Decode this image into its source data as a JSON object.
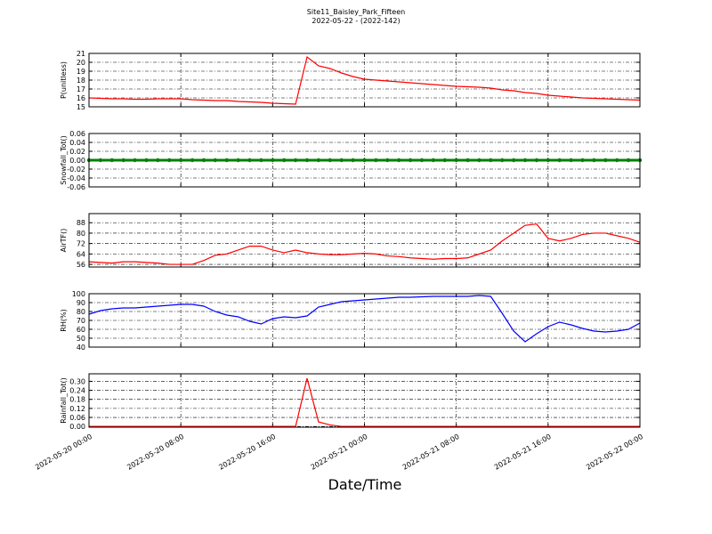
{
  "chart_data": [
    {
      "type": "line",
      "title": "Site11_Baisley_Park_Fifteen",
      "subtitle": "2022-05-22 - (2022-142)",
      "y_label": "P(unitless)",
      "xlim": [
        "2022-05-20 00:00",
        "2022-05-22 00:00"
      ],
      "ylim": [
        15,
        21
      ],
      "yticks": [
        15,
        16,
        17,
        18,
        19,
        20,
        21
      ],
      "grid": true,
      "x": [
        "2022-05-20 00:00",
        "2022-05-20 01:00",
        "2022-05-20 02:00",
        "2022-05-20 03:00",
        "2022-05-20 04:00",
        "2022-05-20 05:00",
        "2022-05-20 06:00",
        "2022-05-20 07:00",
        "2022-05-20 08:00",
        "2022-05-20 09:00",
        "2022-05-20 10:00",
        "2022-05-20 11:00",
        "2022-05-20 12:00",
        "2022-05-20 13:00",
        "2022-05-20 14:00",
        "2022-05-20 15:00",
        "2022-05-20 16:00",
        "2022-05-20 17:00",
        "2022-05-20 18:00",
        "2022-05-20 19:00",
        "2022-05-20 20:00",
        "2022-05-20 21:00",
        "2022-05-20 22:00",
        "2022-05-20 23:00",
        "2022-05-21 00:00",
        "2022-05-21 01:00",
        "2022-05-21 02:00",
        "2022-05-21 03:00",
        "2022-05-21 04:00",
        "2022-05-21 05:00",
        "2022-05-21 06:00",
        "2022-05-21 07:00",
        "2022-05-21 08:00",
        "2022-05-21 09:00",
        "2022-05-21 10:00",
        "2022-05-21 11:00",
        "2022-05-21 12:00",
        "2022-05-21 13:00",
        "2022-05-21 14:00",
        "2022-05-21 15:00",
        "2022-05-21 16:00",
        "2022-05-21 17:00",
        "2022-05-21 18:00",
        "2022-05-21 19:00",
        "2022-05-21 20:00",
        "2022-05-21 21:00",
        "2022-05-21 22:00",
        "2022-05-21 23:00",
        "2022-05-22 00:00"
      ],
      "series": [
        {
          "name": "P",
          "color": "#ff0000",
          "values": [
            16.0,
            15.95,
            15.9,
            15.9,
            15.85,
            15.85,
            15.9,
            15.9,
            15.9,
            15.8,
            15.75,
            15.7,
            15.7,
            15.6,
            15.55,
            15.5,
            15.4,
            15.35,
            15.3,
            20.6,
            19.6,
            19.3,
            18.8,
            18.4,
            18.1,
            18.0,
            17.9,
            17.8,
            17.7,
            17.6,
            17.5,
            17.4,
            17.3,
            17.25,
            17.2,
            17.1,
            16.9,
            16.8,
            16.6,
            16.5,
            16.3,
            16.2,
            16.1,
            16.0,
            15.95,
            15.9,
            15.85,
            15.8,
            15.75
          ]
        }
      ]
    },
    {
      "type": "line",
      "y_label": "Snowfall_Tot()",
      "markers": true,
      "xlim": [
        "2022-05-20 00:00",
        "2022-05-22 00:00"
      ],
      "ylim": [
        -0.06,
        0.06
      ],
      "yticks": [
        -0.06,
        -0.04,
        -0.02,
        {
          "value": 0,
          "label": "0.00"
        },
        0.02,
        0.04,
        0.06
      ],
      "grid": true,
      "x": [
        "2022-05-20 00:00",
        "2022-05-20 01:00",
        "2022-05-20 02:00",
        "2022-05-20 03:00",
        "2022-05-20 04:00",
        "2022-05-20 05:00",
        "2022-05-20 06:00",
        "2022-05-20 07:00",
        "2022-05-20 08:00",
        "2022-05-20 09:00",
        "2022-05-20 10:00",
        "2022-05-20 11:00",
        "2022-05-20 12:00",
        "2022-05-20 13:00",
        "2022-05-20 14:00",
        "2022-05-20 15:00",
        "2022-05-20 16:00",
        "2022-05-20 17:00",
        "2022-05-20 18:00",
        "2022-05-20 19:00",
        "2022-05-20 20:00",
        "2022-05-20 21:00",
        "2022-05-20 22:00",
        "2022-05-20 23:00",
        "2022-05-21 00:00",
        "2022-05-21 01:00",
        "2022-05-21 02:00",
        "2022-05-21 03:00",
        "2022-05-21 04:00",
        "2022-05-21 05:00",
        "2022-05-21 06:00",
        "2022-05-21 07:00",
        "2022-05-21 08:00",
        "2022-05-21 09:00",
        "2022-05-21 10:00",
        "2022-05-21 11:00",
        "2022-05-21 12:00",
        "2022-05-21 13:00",
        "2022-05-21 14:00",
        "2022-05-21 15:00",
        "2022-05-21 16:00",
        "2022-05-21 17:00",
        "2022-05-21 18:00",
        "2022-05-21 19:00",
        "2022-05-21 20:00",
        "2022-05-21 21:00",
        "2022-05-21 22:00",
        "2022-05-21 23:00",
        "2022-05-22 00:00"
      ],
      "series": [
        {
          "name": "Snowfall_Tot",
          "color": "#008000",
          "values": [
            0,
            0,
            0,
            0,
            0,
            0,
            0,
            0,
            0,
            0,
            0,
            0,
            0,
            0,
            0,
            0,
            0,
            0,
            0,
            0,
            0,
            0,
            0,
            0,
            0,
            0,
            0,
            0,
            0,
            0,
            0,
            0,
            0,
            0,
            0,
            0,
            0,
            0,
            0,
            0,
            0,
            0,
            0,
            0,
            0,
            0,
            0,
            0,
            0
          ]
        }
      ]
    },
    {
      "type": "line",
      "y_label": "AirTF()",
      "xlim": [
        "2022-05-20 00:00",
        "2022-05-22 00:00"
      ],
      "ylim": [
        54,
        95
      ],
      "yticks": [
        56,
        64,
        72,
        80,
        88
      ],
      "grid": true,
      "x": [
        "2022-05-20 00:00",
        "2022-05-20 01:00",
        "2022-05-20 02:00",
        "2022-05-20 03:00",
        "2022-05-20 04:00",
        "2022-05-20 05:00",
        "2022-05-20 06:00",
        "2022-05-20 07:00",
        "2022-05-20 08:00",
        "2022-05-20 09:00",
        "2022-05-20 10:00",
        "2022-05-20 11:00",
        "2022-05-20 12:00",
        "2022-05-20 13:00",
        "2022-05-20 14:00",
        "2022-05-20 15:00",
        "2022-05-20 16:00",
        "2022-05-20 17:00",
        "2022-05-20 18:00",
        "2022-05-20 19:00",
        "2022-05-20 20:00",
        "2022-05-20 21:00",
        "2022-05-20 22:00",
        "2022-05-20 23:00",
        "2022-05-21 00:00",
        "2022-05-21 01:00",
        "2022-05-21 02:00",
        "2022-05-21 03:00",
        "2022-05-21 04:00",
        "2022-05-21 05:00",
        "2022-05-21 06:00",
        "2022-05-21 07:00",
        "2022-05-21 08:00",
        "2022-05-21 09:00",
        "2022-05-21 10:00",
        "2022-05-21 11:00",
        "2022-05-21 12:00",
        "2022-05-21 13:00",
        "2022-05-21 14:00",
        "2022-05-21 15:00",
        "2022-05-21 16:00",
        "2022-05-21 17:00",
        "2022-05-21 18:00",
        "2022-05-21 19:00",
        "2022-05-21 20:00",
        "2022-05-21 21:00",
        "2022-05-21 22:00",
        "2022-05-21 23:00",
        "2022-05-22 00:00"
      ],
      "series": [
        {
          "name": "AirTF",
          "color": "#ff0000",
          "values": [
            58,
            57.5,
            57,
            58,
            58,
            57.5,
            57,
            56,
            56,
            56,
            59,
            63,
            64,
            67,
            70,
            70,
            67,
            65,
            67,
            65,
            64,
            63.5,
            63.5,
            64,
            64.5,
            64,
            62.5,
            62,
            61,
            60.5,
            60,
            60.5,
            60.5,
            61,
            64,
            67,
            74,
            80,
            86,
            87,
            76,
            74,
            76,
            79,
            80,
            80,
            78,
            76,
            73
          ]
        }
      ]
    },
    {
      "type": "line",
      "y_label": "RH(%)",
      "xlim": [
        "2022-05-20 00:00",
        "2022-05-22 00:00"
      ],
      "ylim": [
        40,
        100
      ],
      "yticks": [
        40,
        50,
        60,
        70,
        80,
        90,
        100
      ],
      "grid": true,
      "x": [
        "2022-05-20 00:00",
        "2022-05-20 01:00",
        "2022-05-20 02:00",
        "2022-05-20 03:00",
        "2022-05-20 04:00",
        "2022-05-20 05:00",
        "2022-05-20 06:00",
        "2022-05-20 07:00",
        "2022-05-20 08:00",
        "2022-05-20 09:00",
        "2022-05-20 10:00",
        "2022-05-20 11:00",
        "2022-05-20 12:00",
        "2022-05-20 13:00",
        "2022-05-20 14:00",
        "2022-05-20 15:00",
        "2022-05-20 16:00",
        "2022-05-20 17:00",
        "2022-05-20 18:00",
        "2022-05-20 19:00",
        "2022-05-20 20:00",
        "2022-05-20 21:00",
        "2022-05-20 22:00",
        "2022-05-20 23:00",
        "2022-05-21 00:00",
        "2022-05-21 01:00",
        "2022-05-21 02:00",
        "2022-05-21 03:00",
        "2022-05-21 04:00",
        "2022-05-21 05:00",
        "2022-05-21 06:00",
        "2022-05-21 07:00",
        "2022-05-21 08:00",
        "2022-05-21 09:00",
        "2022-05-21 10:00",
        "2022-05-21 11:00",
        "2022-05-21 12:00",
        "2022-05-21 13:00",
        "2022-05-21 14:00",
        "2022-05-21 15:00",
        "2022-05-21 16:00",
        "2022-05-21 17:00",
        "2022-05-21 18:00",
        "2022-05-21 19:00",
        "2022-05-21 20:00",
        "2022-05-21 21:00",
        "2022-05-21 22:00",
        "2022-05-21 23:00",
        "2022-05-22 00:00"
      ],
      "series": [
        {
          "name": "RH",
          "color": "#0000ff",
          "values": [
            77,
            81,
            83,
            84,
            84,
            85,
            86,
            87,
            88,
            88,
            86,
            80,
            76,
            74,
            69,
            66,
            72,
            74,
            73,
            75,
            85,
            88,
            91,
            92,
            93,
            94,
            95,
            96,
            96,
            96.5,
            97,
            97,
            97,
            97,
            98,
            97,
            78,
            58,
            46,
            55,
            63,
            68,
            65,
            61,
            58,
            57,
            58,
            60,
            67
          ]
        }
      ]
    },
    {
      "type": "line",
      "y_label": "Rainfall_Tot()",
      "x_label": "Date/Time",
      "xlim": [
        "2022-05-20 00:00",
        "2022-05-22 00:00"
      ],
      "ylim": [
        -0.005,
        0.35
      ],
      "yticks": [
        {
          "value": 0,
          "label": "0.00"
        },
        0.06,
        0.12,
        0.18,
        0.24,
        {
          "value": 0.3,
          "label": "0.30"
        }
      ],
      "grid": true,
      "xticks": [
        "2022-05-20 00:00",
        "2022-05-20 08:00",
        "2022-05-20 16:00",
        "2022-05-21 00:00",
        "2022-05-21 08:00",
        "2022-05-21 16:00",
        "2022-05-22 00:00"
      ],
      "x": [
        "2022-05-20 00:00",
        "2022-05-20 01:00",
        "2022-05-20 02:00",
        "2022-05-20 03:00",
        "2022-05-20 04:00",
        "2022-05-20 05:00",
        "2022-05-20 06:00",
        "2022-05-20 07:00",
        "2022-05-20 08:00",
        "2022-05-20 09:00",
        "2022-05-20 10:00",
        "2022-05-20 11:00",
        "2022-05-20 12:00",
        "2022-05-20 13:00",
        "2022-05-20 14:00",
        "2022-05-20 15:00",
        "2022-05-20 16:00",
        "2022-05-20 17:00",
        "2022-05-20 18:00",
        "2022-05-20 19:00",
        "2022-05-20 20:00",
        "2022-05-20 21:00",
        "2022-05-20 22:00",
        "2022-05-20 23:00",
        "2022-05-21 00:00",
        "2022-05-21 01:00",
        "2022-05-21 02:00",
        "2022-05-21 03:00",
        "2022-05-21 04:00",
        "2022-05-21 05:00",
        "2022-05-21 06:00",
        "2022-05-21 07:00",
        "2022-05-21 08:00",
        "2022-05-21 09:00",
        "2022-05-21 10:00",
        "2022-05-21 11:00",
        "2022-05-21 12:00",
        "2022-05-21 13:00",
        "2022-05-21 14:00",
        "2022-05-21 15:00",
        "2022-05-21 16:00",
        "2022-05-21 17:00",
        "2022-05-21 18:00",
        "2022-05-21 19:00",
        "2022-05-21 20:00",
        "2022-05-21 21:00",
        "2022-05-21 22:00",
        "2022-05-21 23:00",
        "2022-05-22 00:00"
      ],
      "series": [
        {
          "name": "Rainfall_Tot",
          "color": "#ff0000",
          "values": [
            0,
            0,
            0,
            0,
            0,
            0,
            0,
            0,
            0,
            0,
            0,
            0,
            0,
            0,
            0,
            0,
            0,
            0,
            0,
            0.32,
            0.03,
            0.01,
            0,
            0,
            0,
            0,
            0,
            0,
            0,
            0,
            0,
            0,
            0,
            0,
            0,
            0,
            0,
            0,
            0,
            0,
            0,
            0,
            0,
            0,
            0,
            0,
            0,
            0,
            0
          ]
        }
      ]
    }
  ]
}
